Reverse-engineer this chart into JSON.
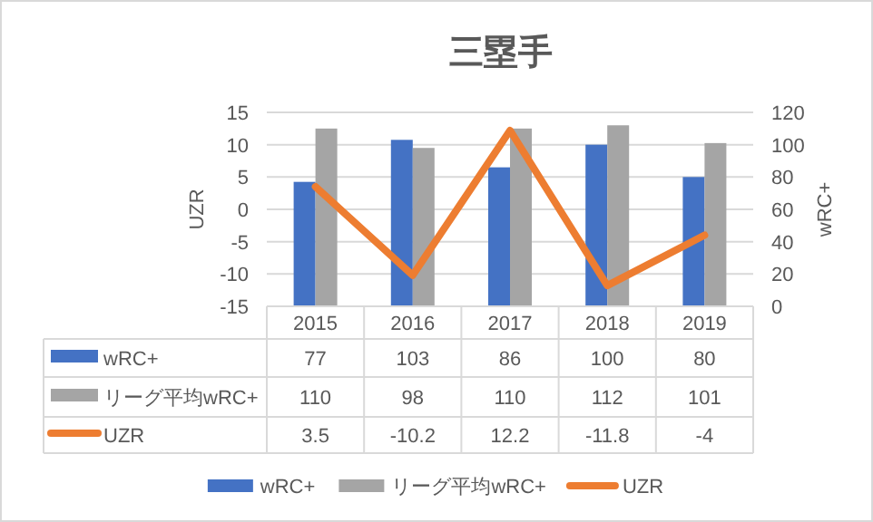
{
  "chart_data": {
    "type": "bar",
    "title": "三塁手",
    "ylabel": "UZR",
    "y2label": "wRC+",
    "categories": [
      "2015",
      "2016",
      "2017",
      "2018",
      "2019"
    ],
    "series": [
      {
        "name": "wRC+",
        "color": "#4472c4",
        "axis": "y2",
        "values": [
          77,
          103,
          86,
          100,
          80
        ]
      },
      {
        "name": "リーグ平均wRC+",
        "color": "#a5a5a5",
        "axis": "y2",
        "values": [
          110,
          98,
          110,
          112,
          101
        ]
      },
      {
        "name": "UZR",
        "type": "line",
        "color": "#ed7d31",
        "values": [
          3.5,
          -10.2,
          12.2,
          -11.8,
          -4
        ]
      }
    ],
    "ylim": [
      -15,
      15
    ],
    "yticks": [
      -15,
      -10,
      -5,
      0,
      5,
      10,
      15
    ],
    "y2lim": [
      0,
      120
    ],
    "y2ticks": [
      0,
      20,
      40,
      60,
      80,
      100,
      120
    ],
    "grid": "y",
    "data_labels": true,
    "legend": "bottom"
  }
}
